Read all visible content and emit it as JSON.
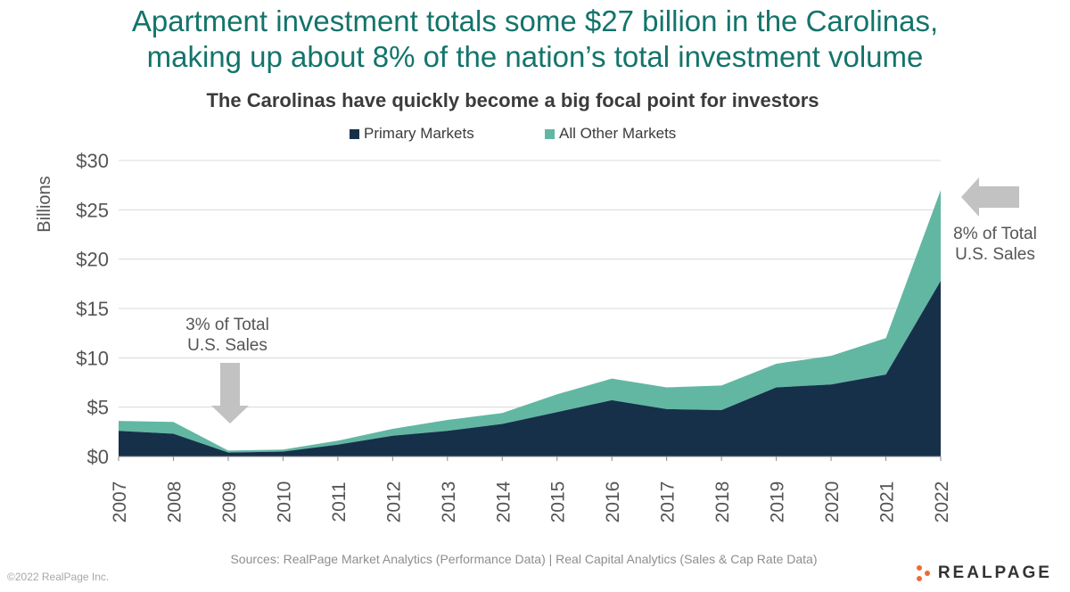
{
  "headline": {
    "line1": "Apartment investment totals some $27 billion in the Carolinas,",
    "line2": "making up about 8% of the nation’s total investment volume"
  },
  "footer": {
    "source": "Sources: RealPage Market Analytics (Performance Data) | Real Capital Analytics (Sales & Cap Rate Data)",
    "copyright": "©2022 RealPage Inc.",
    "logo_text": "REALPAGE",
    "logo_icon": "realpage-dots-logo"
  },
  "annotations": {
    "left": {
      "line1": "3% of Total",
      "line2": "U.S. Sales"
    },
    "right": {
      "line1": "8% of Total",
      "line2": "U.S. Sales"
    }
  },
  "colors": {
    "primary": "#16304a",
    "other": "#62b7a2",
    "headline": "#13746b",
    "arrow": "#c2c2c2"
  },
  "chart_data": {
    "type": "area",
    "title": "The Carolinas have quickly become a big focal point for investors",
    "ylabel": "Billions",
    "xlabel": "",
    "categories": [
      "2007",
      "2008",
      "2009",
      "2010",
      "2011",
      "2012",
      "2013",
      "2014",
      "2015",
      "2016",
      "2017",
      "2018",
      "2019",
      "2020",
      "2021",
      "2022"
    ],
    "yticks": [
      "$0",
      "$5",
      "$10",
      "$15",
      "$20",
      "$25",
      "$30"
    ],
    "ylim": [
      0,
      30
    ],
    "stacked": true,
    "legend_position": "top-center",
    "grid": true,
    "series": [
      {
        "name": "Primary Markets",
        "values": [
          2.6,
          2.3,
          0.4,
          0.5,
          1.2,
          2.1,
          2.6,
          3.3,
          4.5,
          5.7,
          4.8,
          4.7,
          7.0,
          7.3,
          8.3,
          17.8
        ]
      },
      {
        "name": "All Other Markets",
        "values": [
          1.0,
          1.2,
          0.2,
          0.2,
          0.4,
          0.7,
          1.1,
          1.1,
          1.8,
          2.2,
          2.2,
          2.5,
          2.4,
          2.9,
          3.7,
          9.2
        ]
      }
    ]
  }
}
